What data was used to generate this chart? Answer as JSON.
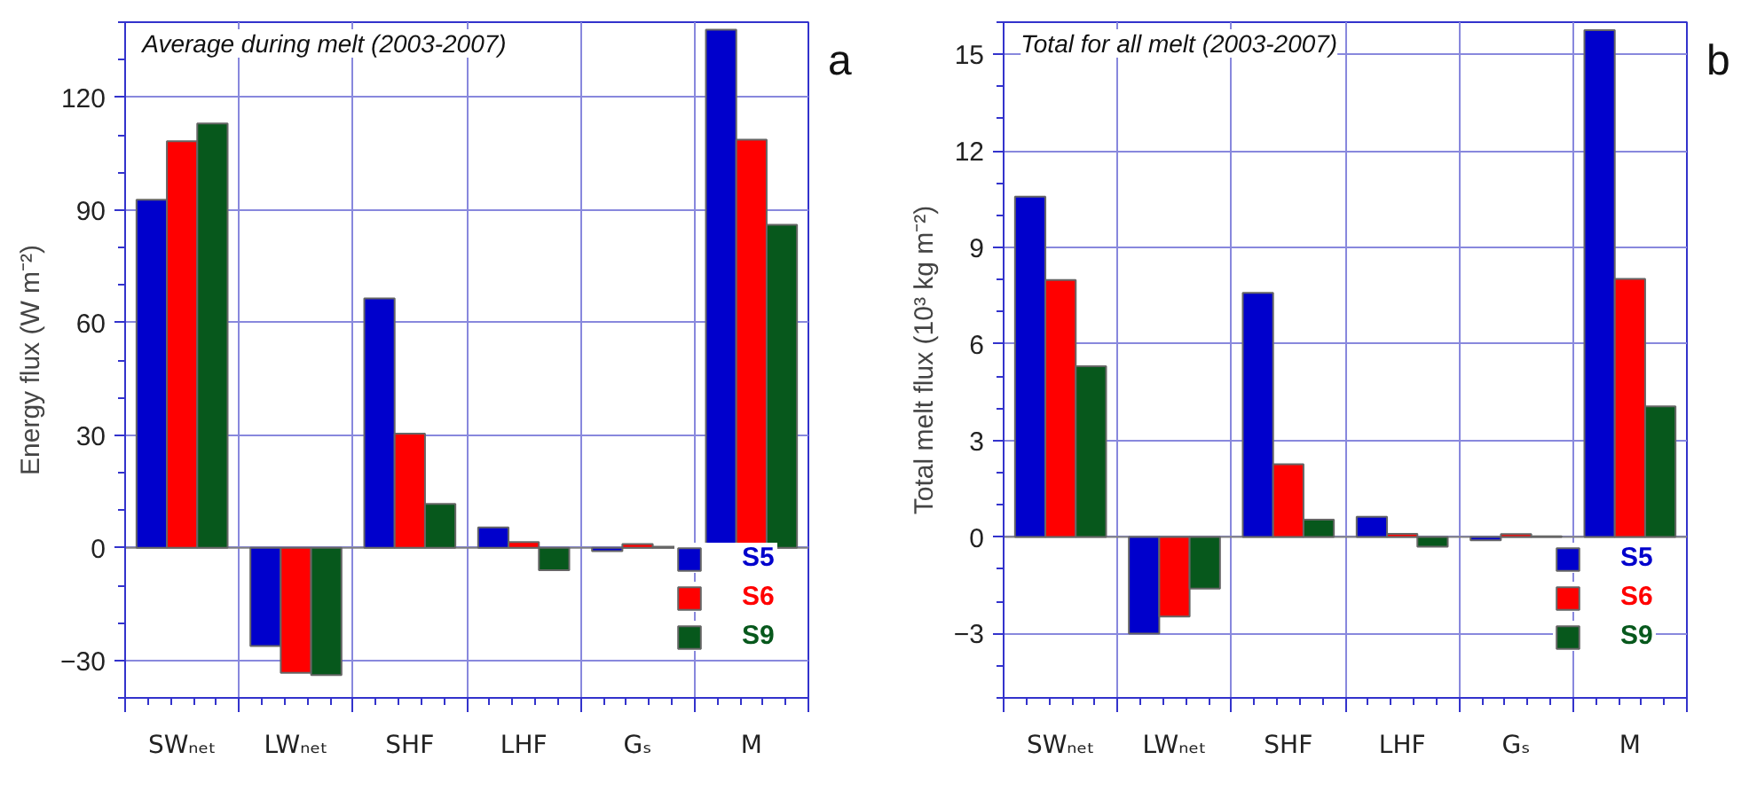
{
  "chart_data": [
    {
      "type": "bar",
      "title": "Average during melt (2003-2007)",
      "ylabel": "Energy flux (W m⁻²)",
      "annotations": [
        "a"
      ],
      "categories": [
        "SWₙₑₜ",
        "LWₙₑₜ",
        "SHF",
        "LHF",
        "Gₛ",
        "M"
      ],
      "series": [
        {
          "name": "S5",
          "color": "#0000cc",
          "values": [
            92.7,
            -26.2,
            66.4,
            5.4,
            -0.9,
            138
          ]
        },
        {
          "name": "S6",
          "color": "#ff0000",
          "values": [
            108.3,
            -33.3,
            30.4,
            1.5,
            1.0,
            108.7
          ]
        },
        {
          "name": "S9",
          "color": "#07581c",
          "values": [
            113,
            -33.9,
            11.7,
            -6,
            0.3,
            86
          ]
        }
      ],
      "ylim": [
        -40,
        140
      ],
      "yticks": [
        -30,
        0,
        30,
        60,
        90,
        120
      ],
      "grid": true,
      "legend": "bottom right",
      "ref_lines": [
        {
          "axis": "y",
          "value": 0,
          "color": "#808080"
        }
      ]
    },
    {
      "type": "bar",
      "title": "Total for all melt (2003-2007)",
      "ylabel": "Total melt flux (10³ kg m⁻²)",
      "annotations": [
        "b"
      ],
      "categories": [
        "SWₙₑₜ",
        "LWₙₑₜ",
        "SHF",
        "LHF",
        "Gₛ",
        "M"
      ],
      "series": [
        {
          "name": "S5",
          "color": "#0000cc",
          "values": [
            10.58,
            -3.0,
            7.59,
            0.63,
            -0.1,
            15.75
          ]
        },
        {
          "name": "S6",
          "color": "#ff0000",
          "values": [
            7.99,
            -2.47,
            2.26,
            0.1,
            0.09,
            8.02
          ]
        },
        {
          "name": "S9",
          "color": "#07581c",
          "values": [
            5.31,
            -1.6,
            0.54,
            -0.3,
            0.02,
            4.06
          ]
        }
      ],
      "ylim": [
        -5,
        16
      ],
      "yticks": [
        -3,
        0,
        3,
        6,
        9,
        12,
        15
      ],
      "grid": true,
      "legend": "bottom right",
      "ref_lines": [
        {
          "axis": "y",
          "value": 0,
          "color": "#808080"
        }
      ]
    }
  ]
}
